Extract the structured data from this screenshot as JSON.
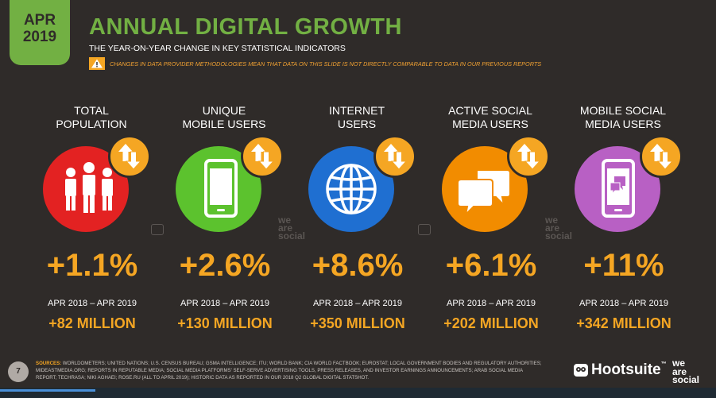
{
  "header": {
    "date_month": "APR",
    "date_year": "2019",
    "title": "ANNUAL DIGITAL GROWTH",
    "subtitle": "THE YEAR-ON-YEAR CHANGE IN KEY STATISTICAL INDICATORS",
    "warning": "CHANGES IN DATA PROVIDER METHODOLOGIES MEAN THAT DATA ON THIS SLIDE IS NOT DIRECTLY COMPARABLE TO DATA IN OUR PREVIOUS REPORTS"
  },
  "colors": {
    "background": "#2f2b29",
    "accent_green": "#72b043",
    "accent_orange": "#f5a623",
    "red": "#e32222",
    "green": "#5cc22e",
    "blue": "#1f6fd1",
    "orange": "#f28c00",
    "purple": "#b860c4"
  },
  "stats": [
    {
      "label_line1": "TOTAL",
      "label_line2": "POPULATION",
      "icon": "people-icon",
      "change": "+1.1%",
      "period": "APR 2018 – APR 2019",
      "absolute": "+82 MILLION"
    },
    {
      "label_line1": "UNIQUE",
      "label_line2": "MOBILE USERS",
      "icon": "mobile-phone-icon",
      "change": "+2.6%",
      "period": "APR 2018 – APR 2019",
      "absolute": "+130 MILLION"
    },
    {
      "label_line1": "INTERNET",
      "label_line2": "USERS",
      "icon": "globe-icon",
      "change": "+8.6%",
      "period": "APR 2018 – APR 2019",
      "absolute": "+350 MILLION"
    },
    {
      "label_line1": "ACTIVE SOCIAL",
      "label_line2": "MEDIA USERS",
      "icon": "chat-bubbles-icon",
      "change": "+6.1%",
      "period": "APR 2018 – APR 2019",
      "absolute": "+202 MILLION"
    },
    {
      "label_line1": "MOBILE SOCIAL",
      "label_line2": "MEDIA USERS",
      "icon": "mobile-chat-icon",
      "change": "+11%",
      "period": "APR 2018 – APR 2019",
      "absolute": "+342 MILLION"
    }
  ],
  "watermark": {
    "line1": "we",
    "line2": "are",
    "line3": "social"
  },
  "footer": {
    "page_number": "7",
    "sources_label": "SOURCES:",
    "sources_text": "WORLDOMETERS; UNITED NATIONS; U.S. CENSUS BUREAU; GSMA INTELLIGENCE; ITU; WORLD BANK; CIA WORLD FACTBOOK; EUROSTAT; LOCAL GOVERNMENT BODIES AND REGULATORY AUTHORITIES; MIDEASTMEDIA.ORG; REPORTS IN REPUTABLE MEDIA; SOCIAL MEDIA PLATFORMS' SELF-SERVE ADVERTISING TOOLS, PRESS RELEASES, AND INVESTOR EARNINGS ANNOUNCEMENTS; ARAB SOCIAL MEDIA REPORT; TECHRASA; NIKI AGHAEI; ROSE.RU (ALL TO APRIL 2019); HISTORIC DATA AS REPORTED IN OUR 2018 Q2 GLOBAL DIGITAL STATSHOT.",
    "hootsuite": "Hootsuite",
    "hootsuite_tm": "™",
    "was_line1": "we",
    "was_line2": "are",
    "was_line3": "social"
  }
}
